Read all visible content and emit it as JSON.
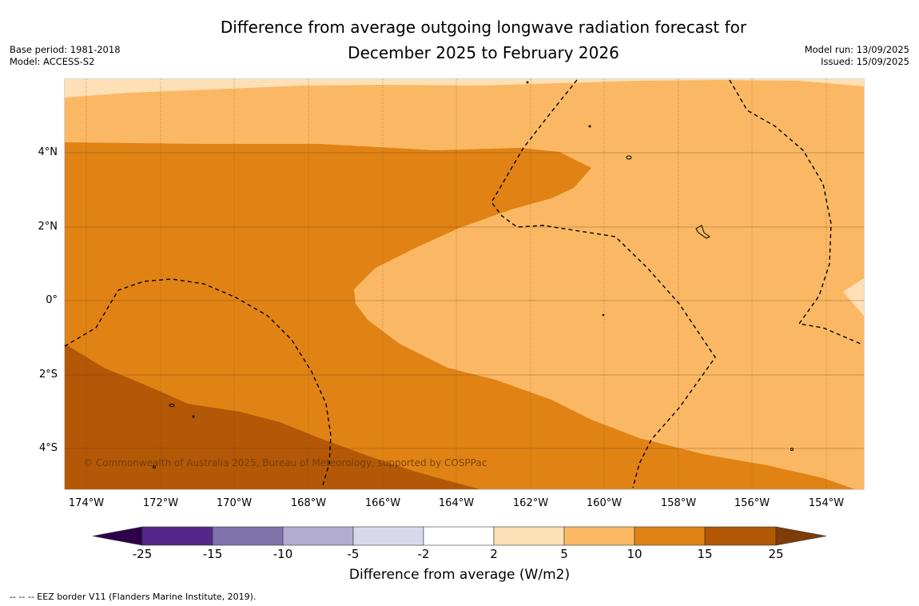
{
  "title_line1": "Difference from average outgoing longwave radiation forecast for",
  "title_line2": "December 2025 to February 2026",
  "meta_left": {
    "base_period": "Base period: 1981-2018",
    "model": "Model: ACCESS-S2"
  },
  "meta_right": {
    "model_run": "Model run: 13/09/2025",
    "issued": "Issued: 15/09/2025"
  },
  "map": {
    "lat_labels": [
      "4°N",
      "2°N",
      "0°",
      "2°S",
      "4°S"
    ],
    "lon_labels": [
      "174°W",
      "172°W",
      "170°W",
      "168°W",
      "166°W",
      "164°W",
      "162°W",
      "160°W",
      "158°W",
      "156°W",
      "154°W"
    ],
    "copyright": "© Commonwealth of Australia 2025, Bureau of Meteorology, supported by COSPPac",
    "colors": {
      "band_2_5": "#fee0b6",
      "band_5_10": "#fbb864",
      "band_10_15": "#e08314",
      "band_15_25": "#b35806",
      "eez_line": "#000000"
    }
  },
  "colorbar": {
    "tick_labels": [
      "-25",
      "-15",
      "-10",
      "-5",
      "-2",
      "2",
      "5",
      "10",
      "15",
      "25"
    ],
    "colors": [
      "#2d004b",
      "#542788",
      "#8073ac",
      "#b2abd2",
      "#d8daeb",
      "#ffffff",
      "#fee0b6",
      "#fdb863",
      "#e08214",
      "#b35806",
      "#7f3b08"
    ],
    "label": "Difference from average (W/m2)"
  },
  "footnote": "--  --  -- EEZ border V11 (Flanders Marine Institute, 2019)."
}
